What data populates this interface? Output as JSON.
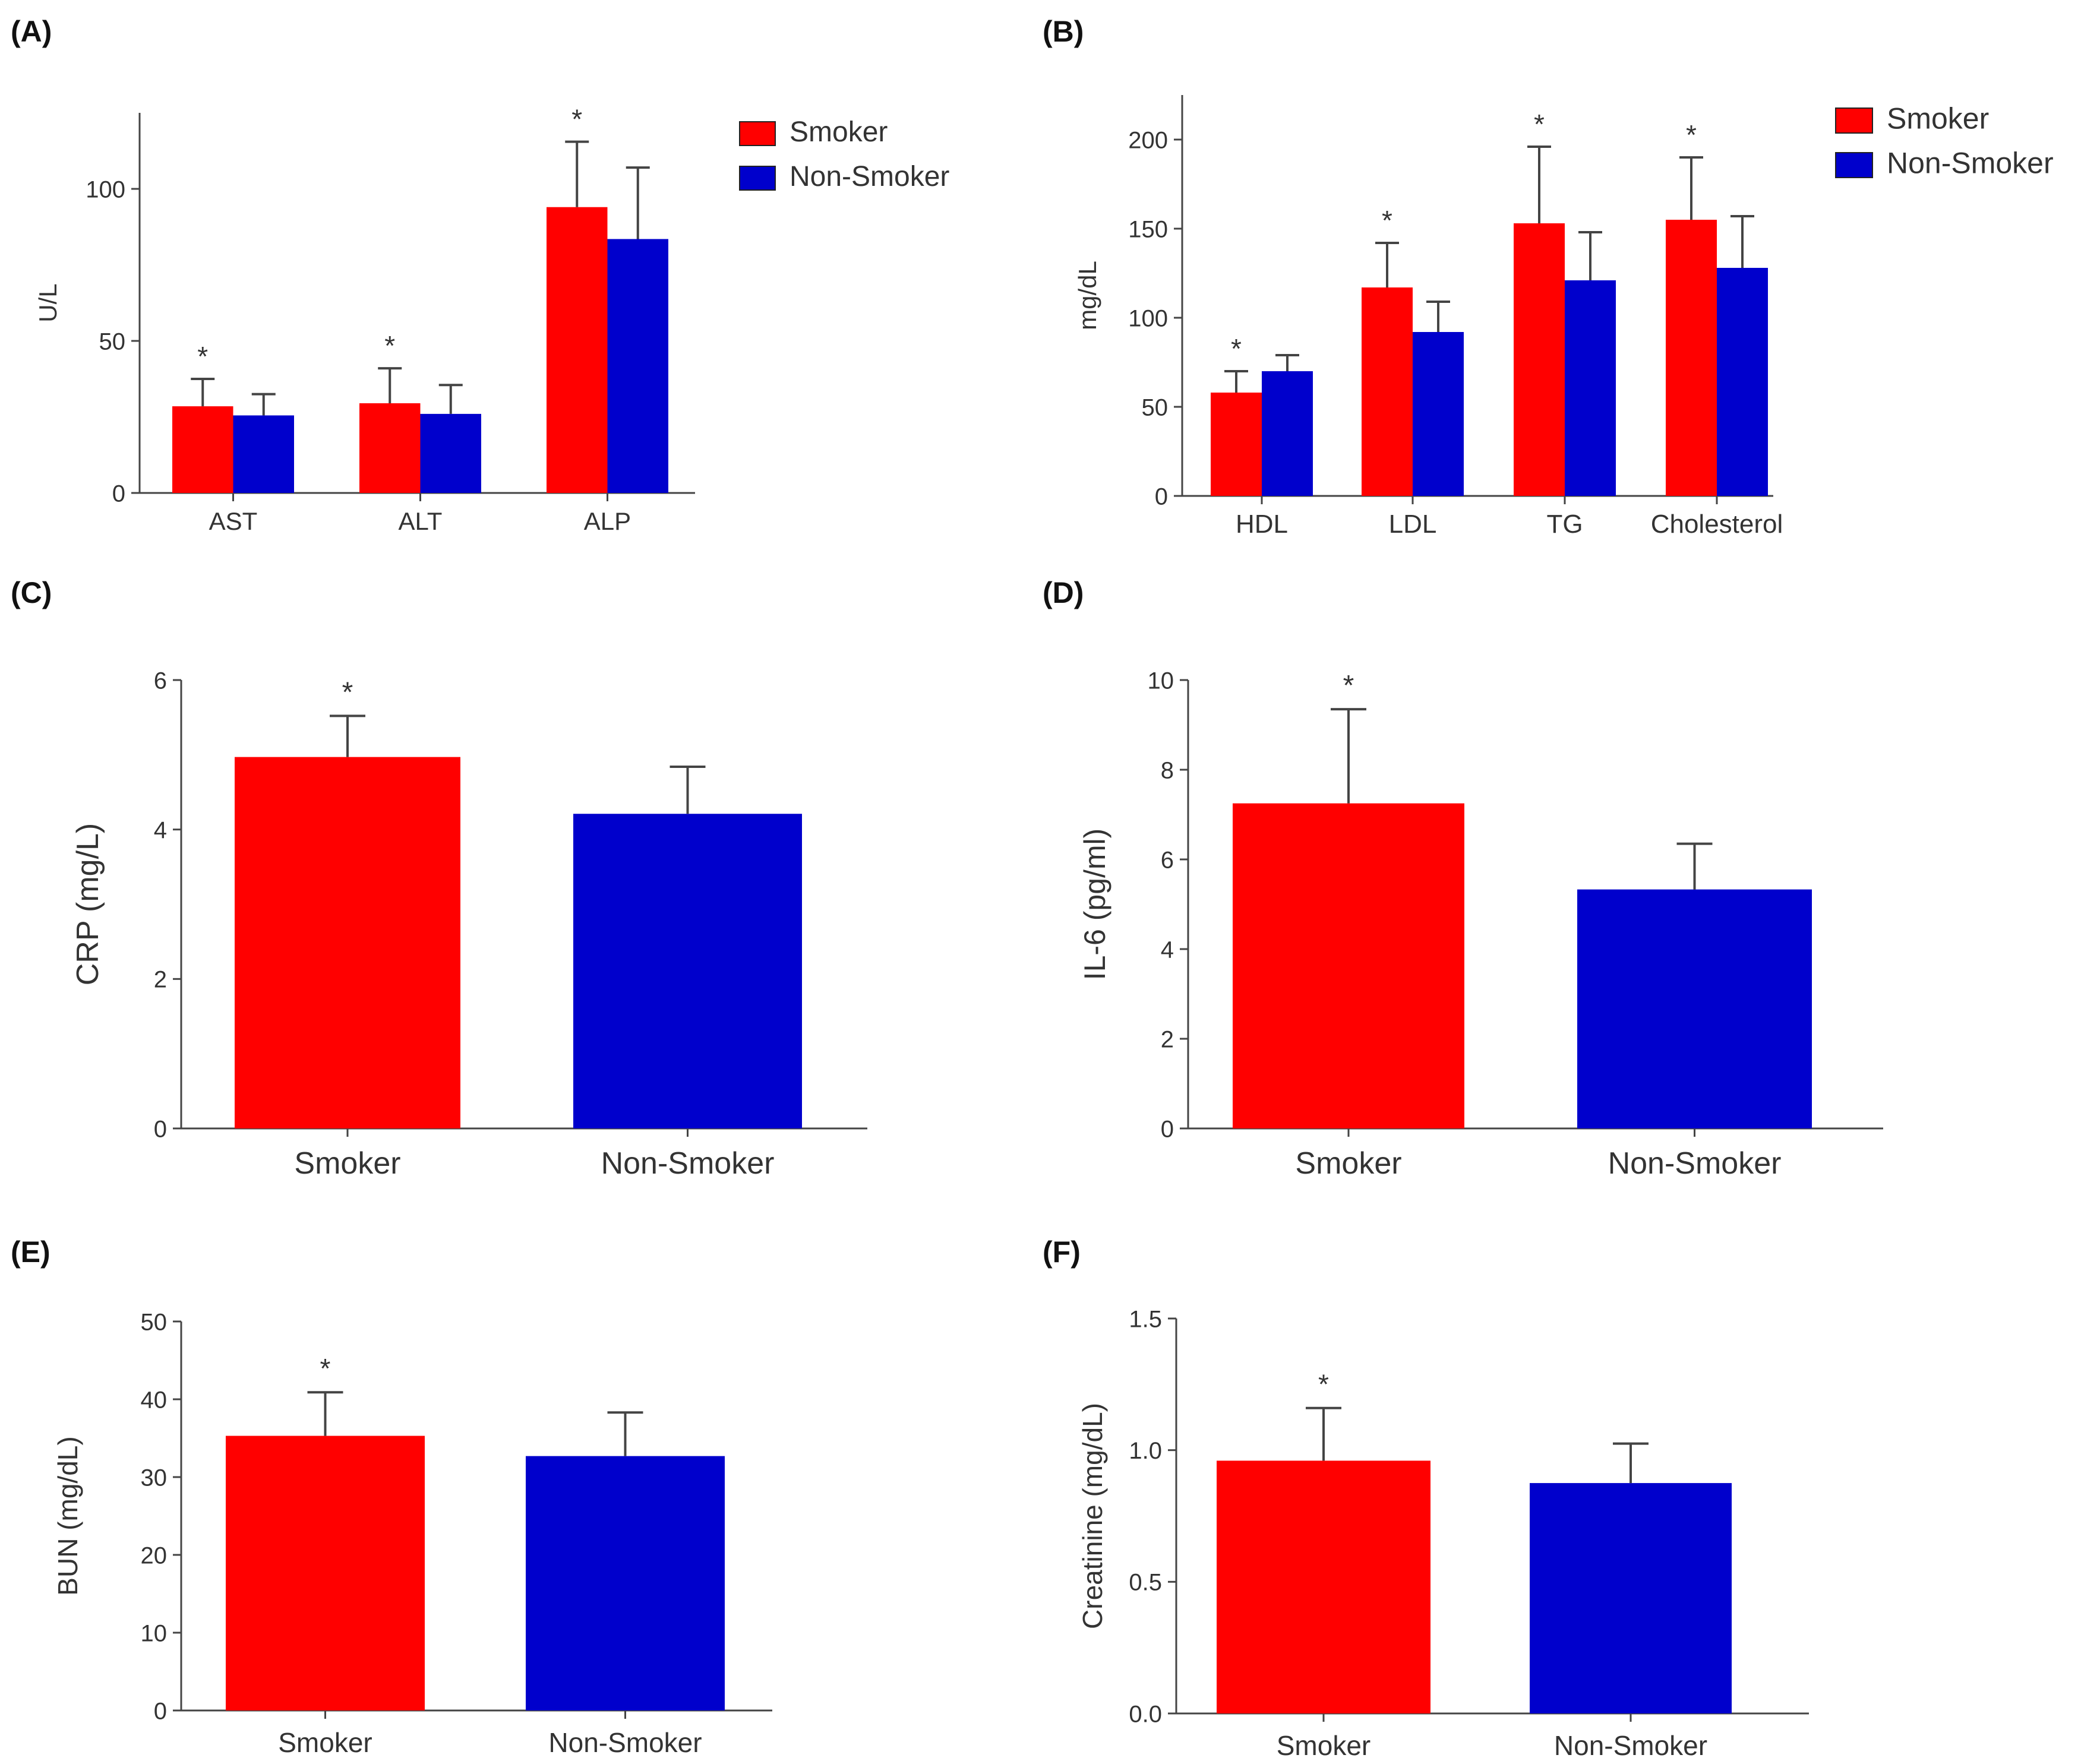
{
  "colors": {
    "smoker": "#ff0000",
    "non_smoker": "#0000cc",
    "axis": "#444444",
    "text": "#333333"
  },
  "chart_data": [
    {
      "id": "A",
      "type": "bar",
      "panel_label": "(A)",
      "title": "",
      "ylabel": "U/L",
      "xlabel": "",
      "categories": [
        "AST",
        "ALT",
        "ALP"
      ],
      "series": [
        {
          "name": "Smoker",
          "values": [
            28.5,
            29.5,
            94
          ],
          "errors": [
            9,
            11.5,
            21.5
          ],
          "color": "#ff0000"
        },
        {
          "name": "Non-Smoker",
          "values": [
            25.5,
            26,
            83.5
          ],
          "errors": [
            7,
            9.5,
            23.5
          ],
          "color": "#0000cc"
        }
      ],
      "significance": [
        "*",
        "*",
        "*"
      ],
      "ylim": [
        0,
        125
      ],
      "yticks": [
        0,
        50,
        100
      ],
      "ytick_labels": [
        "0",
        "50",
        "100"
      ],
      "legend": [
        "Smoker",
        "Non-Smoker"
      ],
      "legend_position": "top-right"
    },
    {
      "id": "B",
      "type": "bar",
      "panel_label": "(B)",
      "title": "",
      "ylabel": "mg/dL",
      "xlabel": "",
      "categories": [
        "HDL",
        "LDL",
        "TG",
        "Cholesterol"
      ],
      "series": [
        {
          "name": "Smoker",
          "values": [
            58,
            117,
            153,
            155
          ],
          "errors": [
            12,
            25,
            43,
            35
          ],
          "color": "#ff0000"
        },
        {
          "name": "Non-Smoker",
          "values": [
            70,
            92,
            121,
            128
          ],
          "errors": [
            9,
            17,
            27,
            29
          ],
          "color": "#0000cc"
        }
      ],
      "significance": [
        "*",
        "*",
        "*",
        "*"
      ],
      "ylim": [
        0,
        225
      ],
      "yticks": [
        0,
        50,
        100,
        150,
        200
      ],
      "ytick_labels": [
        "0",
        "50",
        "100",
        "150",
        "200"
      ],
      "legend": [
        "Smoker",
        "Non-Smoker"
      ],
      "legend_position": "top-right"
    },
    {
      "id": "C",
      "type": "bar",
      "panel_label": "(C)",
      "title": "",
      "ylabel": "CRP (mg/L)",
      "xlabel": "",
      "categories": [
        "Smoker",
        "Non-Smoker"
      ],
      "values": [
        4.97,
        4.21
      ],
      "errors": [
        0.55,
        0.63
      ],
      "significance": [
        "*",
        ""
      ],
      "ylim": [
        0,
        6
      ],
      "yticks": [
        0,
        2,
        4,
        6
      ],
      "ytick_labels": [
        "0",
        "2",
        "4",
        "6"
      ]
    },
    {
      "id": "D",
      "type": "bar",
      "panel_label": "(D)",
      "title": "",
      "ylabel": "IL-6 (pg/ml)",
      "xlabel": "",
      "categories": [
        "Smoker",
        "Non-Smoker"
      ],
      "values": [
        7.25,
        5.33
      ],
      "errors": [
        2.1,
        1.02
      ],
      "significance": [
        "*",
        ""
      ],
      "ylim": [
        0,
        10
      ],
      "yticks": [
        0,
        2,
        4,
        6,
        8,
        10
      ],
      "ytick_labels": [
        "0",
        "2",
        "4",
        "6",
        "8",
        "10"
      ]
    },
    {
      "id": "E",
      "type": "bar",
      "panel_label": "(E)",
      "title": "",
      "ylabel": "BUN (mg/dL)",
      "xlabel": "",
      "categories": [
        "Smoker",
        "Non-Smoker"
      ],
      "values": [
        35.3,
        32.7
      ],
      "errors": [
        5.6,
        5.6
      ],
      "significance": [
        "*",
        ""
      ],
      "ylim": [
        0,
        50
      ],
      "yticks": [
        0,
        10,
        20,
        30,
        40,
        50
      ],
      "ytick_labels": [
        "0",
        "10",
        "20",
        "30",
        "40",
        "50"
      ]
    },
    {
      "id": "F",
      "type": "bar",
      "panel_label": "(F)",
      "title": "",
      "ylabel": "Creatinine (mg/dL)",
      "xlabel": "",
      "categories": [
        "Smoker",
        "Non-Smoker"
      ],
      "values": [
        0.96,
        0.875
      ],
      "errors": [
        0.2,
        0.15
      ],
      "significance": [
        "*",
        ""
      ],
      "ylim": [
        0,
        1.5
      ],
      "yticks": [
        0,
        0.5,
        1.0,
        1.5
      ],
      "ytick_labels": [
        "0.0",
        "0.5",
        "1.0",
        "1.5"
      ]
    }
  ]
}
